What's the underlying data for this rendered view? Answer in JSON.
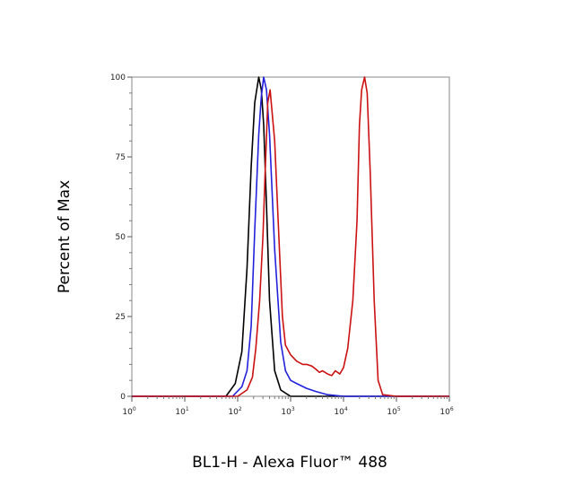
{
  "chart_data": {
    "type": "line",
    "title": "",
    "xlabel": "BL1-H - Alexa Fluor™ 488",
    "ylabel": "Percent of Max",
    "xscale": "log",
    "xlim": [
      1,
      1000000
    ],
    "ylim": [
      0,
      100
    ],
    "x_ticks": [
      {
        "base": "10",
        "exp": "0"
      },
      {
        "base": "10",
        "exp": "1"
      },
      {
        "base": "10",
        "exp": "2"
      },
      {
        "base": "10",
        "exp": "3"
      },
      {
        "base": "10",
        "exp": "4"
      },
      {
        "base": "10",
        "exp": "5"
      },
      {
        "base": "10",
        "exp": "6"
      }
    ],
    "y_ticks": [
      "0",
      "25",
      "50",
      "75",
      "100"
    ],
    "y_tick_values": [
      0,
      25,
      50,
      75,
      100
    ],
    "grid": false,
    "legend": "none",
    "series": [
      {
        "color": "#000000",
        "x": [
          1,
          10,
          60,
          90,
          120,
          150,
          180,
          210,
          250,
          280,
          310,
          350,
          400,
          500,
          650,
          800,
          1000,
          10000,
          100000,
          1000000
        ],
        "y": [
          0,
          0,
          0,
          4,
          14,
          40,
          72,
          92,
          100,
          96,
          85,
          60,
          30,
          8,
          2,
          1,
          0,
          0,
          0,
          0
        ]
      },
      {
        "color": "#2222dd",
        "x": [
          1,
          10,
          80,
          120,
          150,
          180,
          210,
          250,
          280,
          310,
          350,
          400,
          500,
          650,
          800,
          1000,
          1300,
          2000,
          3000,
          5000,
          10000,
          100000,
          1000000
        ],
        "y": [
          0,
          0,
          0,
          3,
          8,
          22,
          52,
          82,
          94,
          100,
          96,
          82,
          46,
          17,
          8,
          5,
          4,
          2.5,
          1.5,
          0.5,
          0,
          0,
          0
        ]
      },
      {
        "color": "#cc1111",
        "x": [
          1,
          10,
          100,
          150,
          190,
          220,
          260,
          300,
          330,
          370,
          410,
          500,
          600,
          700,
          800,
          1000,
          1300,
          1700,
          2000,
          2500,
          3000,
          3500,
          4000,
          5000,
          6000,
          7000,
          8500,
          10000,
          12000,
          15000,
          18000,
          20000,
          22000,
          25000,
          28000,
          32000,
          38000,
          45000,
          55000,
          100000,
          1000000
        ],
        "y": [
          0,
          0,
          0,
          2,
          6,
          15,
          30,
          50,
          70,
          92,
          96,
          80,
          50,
          25,
          16,
          13,
          11,
          10,
          10,
          9.5,
          8.5,
          7.5,
          8,
          7,
          6.5,
          8,
          7,
          9,
          15,
          30,
          55,
          85,
          96,
          100,
          95,
          70,
          30,
          5,
          0.5,
          0,
          0
        ]
      }
    ]
  }
}
